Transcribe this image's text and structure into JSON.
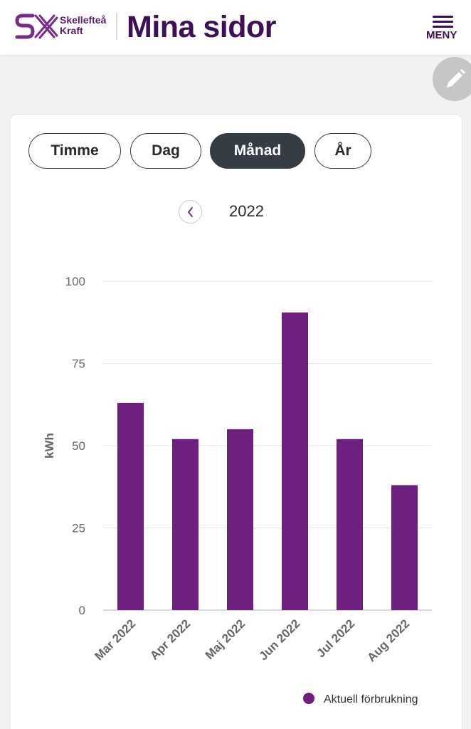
{
  "header": {
    "brand_line1": "Skellefteå",
    "brand_line2": "Kraft",
    "title": "Mina sidor",
    "menu_label": "MENY"
  },
  "tabs": [
    {
      "label": "Timme",
      "active": false
    },
    {
      "label": "Dag",
      "active": false
    },
    {
      "label": "Månad",
      "active": true
    },
    {
      "label": "År",
      "active": false
    }
  ],
  "year_nav": {
    "year": "2022"
  },
  "colors": {
    "bar": "#6e1f7f",
    "brand": "#3d0f57",
    "active_tab": "#363c43"
  },
  "chart_data": {
    "type": "bar",
    "categories": [
      "Mar 2022",
      "Apr 2022",
      "Maj 2022",
      "Jun 2022",
      "Jul 2022",
      "Aug 2022"
    ],
    "series": [
      {
        "name": "Aktuell förbrukning",
        "values": [
          63,
          52,
          55,
          90.5,
          52,
          38
        ]
      }
    ],
    "ylabel": "kWh",
    "xlabel": "",
    "ylim": [
      0,
      100
    ],
    "yticks": [
      0,
      25,
      50,
      75,
      100
    ],
    "grid": true,
    "legend": "bottom-right"
  }
}
